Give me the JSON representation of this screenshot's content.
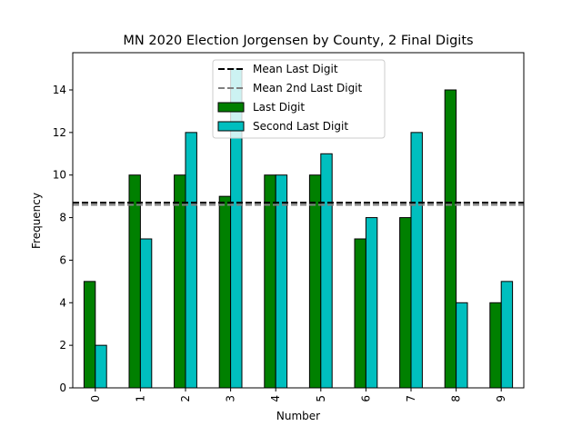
{
  "chart_data": {
    "type": "bar",
    "title": "MN 2020 Election Jorgensen by County, 2 Final Digits",
    "xlabel": "Number",
    "ylabel": "Frequency",
    "categories": [
      "0",
      "1",
      "2",
      "3",
      "4",
      "5",
      "6",
      "7",
      "8",
      "9"
    ],
    "series": [
      {
        "name": "Last Digit",
        "values": [
          5,
          10,
          10,
          9,
          10,
          10,
          7,
          8,
          14,
          4
        ],
        "color": "#008000"
      },
      {
        "name": "Second Last Digit",
        "values": [
          2,
          7,
          12,
          15,
          10,
          11,
          8,
          12,
          4,
          5
        ],
        "color": "#00bfbf"
      }
    ],
    "reference_lines": [
      {
        "name": "Mean Last Digit",
        "value": 8.7,
        "color": "#000000",
        "style": "dashed"
      },
      {
        "name": "Mean 2nd Last Digit",
        "value": 8.6,
        "color": "#808080",
        "style": "dashed"
      }
    ],
    "ylim": [
      0,
      15.75
    ],
    "yticks": [
      0,
      2,
      4,
      6,
      8,
      10,
      12,
      14
    ],
    "legend_position": "top-center",
    "grid": false
  }
}
